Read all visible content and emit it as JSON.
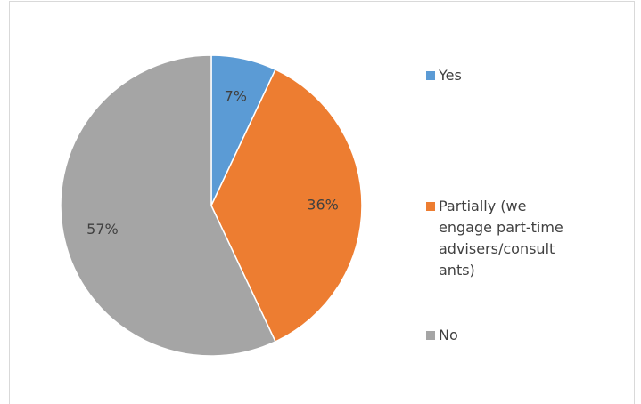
{
  "chart_data": {
    "type": "pie",
    "categories": [
      "Yes",
      "Partially (we engage part-time advisers/consultants)",
      "No"
    ],
    "values": [
      7,
      36,
      57
    ],
    "value_labels": [
      "7%",
      "36%",
      "57%"
    ],
    "colors": [
      "#5b9bd5",
      "#ed7d31",
      "#a5a5a5"
    ]
  }
}
